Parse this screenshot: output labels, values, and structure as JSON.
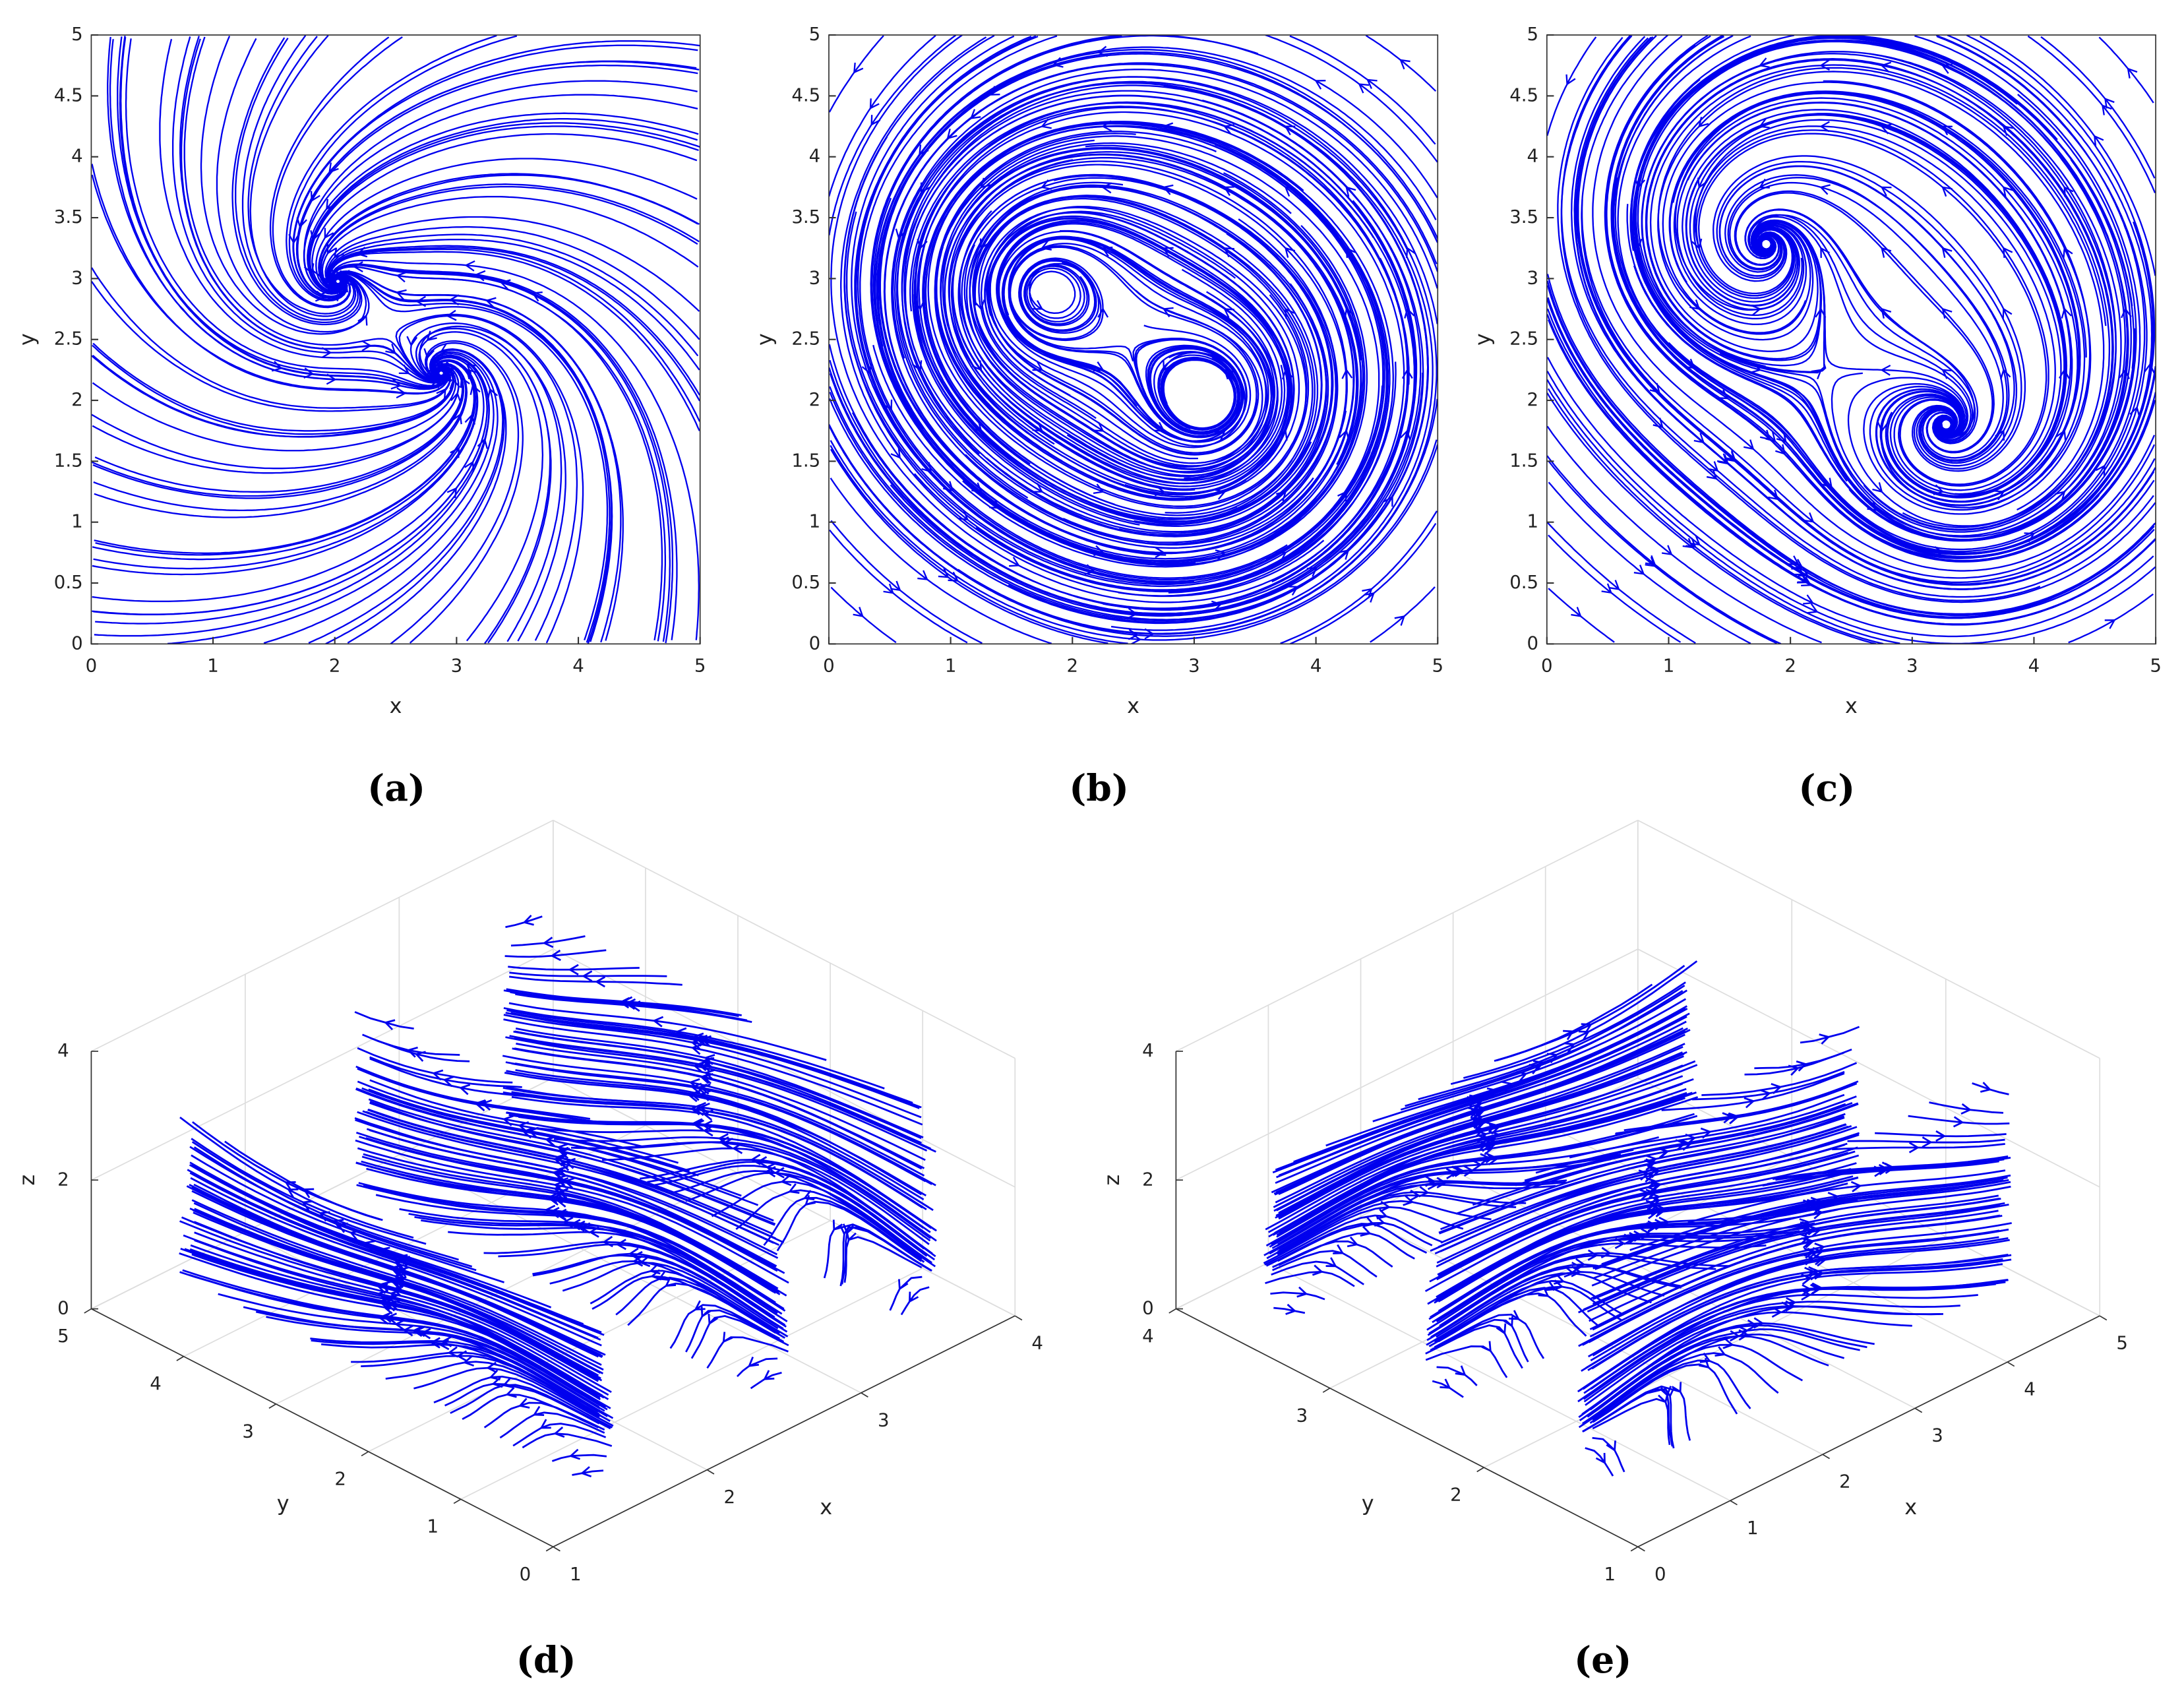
{
  "chart_data": [
    {
      "type": "streamline",
      "label": "(a)",
      "xlabel": "x",
      "ylabel": "y",
      "xlim": [
        0,
        5
      ],
      "ylim": [
        0,
        5
      ],
      "xticks": [
        0,
        1,
        2,
        3,
        4,
        5
      ],
      "yticks": [
        0,
        0.5,
        1,
        1.5,
        2,
        2.5,
        3,
        3.5,
        4,
        4.5,
        5
      ]
    },
    {
      "type": "streamline",
      "label": "(b)",
      "xlabel": "x",
      "ylabel": "y",
      "xlim": [
        0,
        5
      ],
      "ylim": [
        0,
        5
      ],
      "xticks": [
        0,
        1,
        2,
        3,
        4,
        5
      ],
      "yticks": [
        0,
        0.5,
        1,
        1.5,
        2,
        2.5,
        3,
        3.5,
        4,
        4.5,
        5
      ]
    },
    {
      "type": "streamline",
      "label": "(c)",
      "xlabel": "x",
      "ylabel": "y",
      "xlim": [
        0,
        5
      ],
      "ylim": [
        0,
        5
      ],
      "xticks": [
        0,
        1,
        2,
        3,
        4,
        5
      ],
      "yticks": [
        0,
        0.5,
        1,
        1.5,
        2,
        2.5,
        3,
        3.5,
        4,
        4.5,
        5
      ]
    },
    {
      "type": "streamline3d",
      "label": "(d)",
      "xlabel": "x",
      "ylabel": "y",
      "zlabel": "z",
      "xlim": [
        1,
        4
      ],
      "ylim": [
        0,
        5
      ],
      "zlim": [
        0,
        4
      ],
      "xticks": [
        1,
        2,
        3,
        4
      ],
      "yticks": [
        0,
        1,
        2,
        3,
        4,
        5
      ],
      "zticks": [
        0,
        2,
        4
      ]
    },
    {
      "type": "streamline3d",
      "label": "(e)",
      "xlabel": "x",
      "ylabel": "y",
      "zlabel": "z",
      "xlim": [
        0,
        5
      ],
      "ylim": [
        1,
        4
      ],
      "zlim": [
        0,
        4
      ],
      "xticks": [
        0,
        1,
        2,
        3,
        4,
        5
      ],
      "yticks": [
        1,
        2,
        3,
        4
      ],
      "zticks": [
        0,
        2,
        4
      ]
    }
  ]
}
